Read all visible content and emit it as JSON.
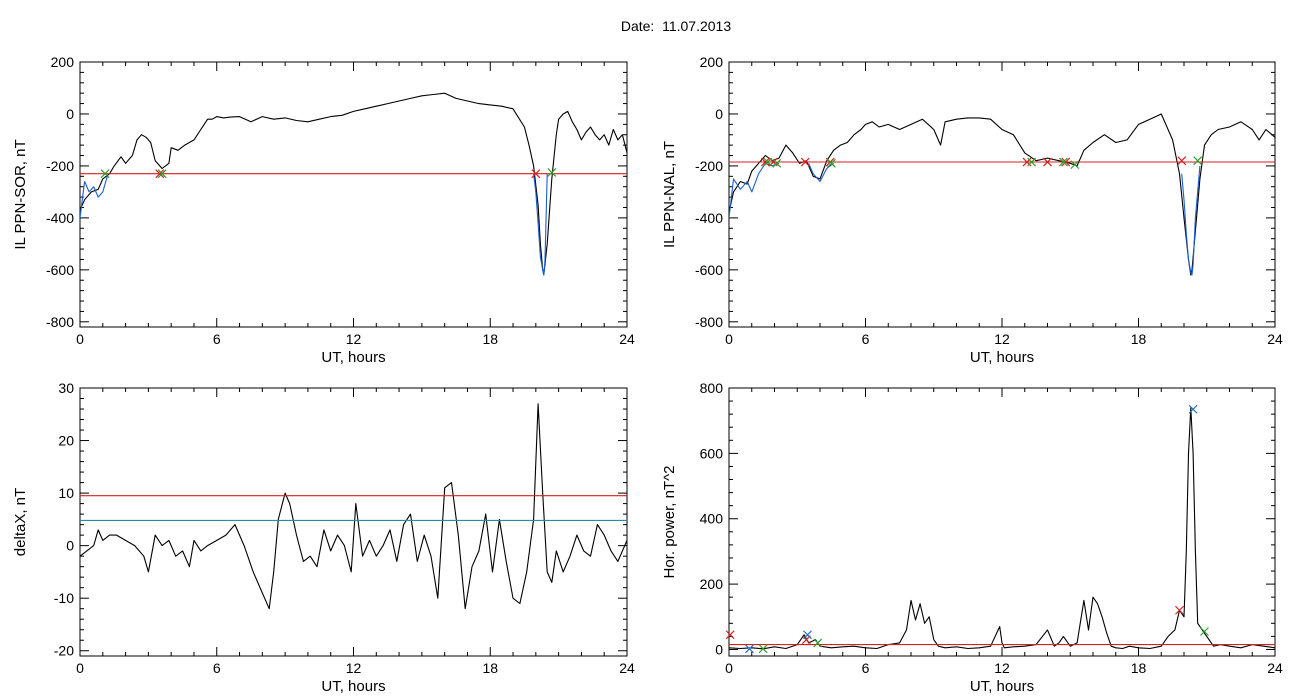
{
  "figure": {
    "title": "Date:  11.07.2013"
  },
  "chart_data": [
    {
      "type": "line",
      "id": "il-sor",
      "ylabel": "IL PPN-SOR, nT",
      "xlabel": "UT, hours",
      "xlim": [
        0,
        24
      ],
      "ylim": [
        -820,
        200
      ],
      "xticks": [
        0,
        6,
        12,
        18,
        24
      ],
      "yticks": [
        -800,
        -600,
        -400,
        -200,
        0,
        200
      ],
      "grid": false,
      "series": [
        {
          "color": "#000000",
          "x": [
            0.0,
            0.2,
            0.5,
            0.8,
            1.0,
            1.3,
            1.5,
            1.8,
            2.0,
            2.3,
            2.5,
            2.7,
            2.9,
            3.1,
            3.3,
            3.6,
            3.9,
            4.0,
            4.3,
            4.6,
            5.0,
            5.3,
            5.6,
            5.8,
            6.0,
            6.3,
            6.6,
            7.0,
            7.5,
            8.0,
            8.5,
            9.0,
            9.5,
            10.0,
            10.5,
            11.0,
            11.5,
            12.0,
            12.5,
            13.0,
            13.5,
            14.0,
            14.5,
            15.0,
            15.5,
            16.0,
            16.5,
            17.0,
            17.5,
            18.0,
            18.5,
            19.0,
            19.5,
            19.7,
            19.9,
            20.1,
            20.2,
            20.3,
            20.35,
            20.5,
            20.7,
            20.9,
            21.0,
            21.2,
            21.4,
            21.6,
            21.8,
            22.0,
            22.2,
            22.4,
            22.6,
            22.8,
            23.0,
            23.2,
            23.4,
            23.6,
            23.8,
            24.0
          ],
          "y": [
            -370,
            -330,
            -300,
            -290,
            -250,
            -230,
            -200,
            -165,
            -190,
            -160,
            -100,
            -80,
            -90,
            -110,
            -180,
            -210,
            -190,
            -130,
            -140,
            -120,
            -100,
            -60,
            -20,
            -20,
            -10,
            -15,
            -12,
            -10,
            -30,
            -10,
            -20,
            -15,
            -25,
            -30,
            -20,
            -10,
            -5,
            10,
            20,
            30,
            40,
            50,
            60,
            70,
            75,
            80,
            60,
            50,
            40,
            35,
            30,
            20,
            -50,
            -120,
            -200,
            -350,
            -500,
            -600,
            -620,
            -500,
            -250,
            -80,
            -20,
            0,
            10,
            -30,
            -60,
            -100,
            -70,
            -50,
            -80,
            -100,
            -80,
            -120,
            -60,
            -100,
            -80,
            -150
          ]
        },
        {
          "color": "#1a5fd0",
          "x": [
            0.0,
            0.2,
            0.4,
            0.6,
            0.8,
            1.0,
            1.2
          ],
          "y": [
            -400,
            -260,
            -300,
            -280,
            -320,
            -300,
            -240
          ]
        },
        {
          "color": "#1a5fd0",
          "x": [
            19.9,
            20.0,
            20.1,
            20.2,
            20.3,
            20.35,
            20.4,
            20.5
          ],
          "y": [
            -230,
            -300,
            -420,
            -550,
            -600,
            -620,
            -560,
            -230
          ]
        },
        {
          "color": "#d62020",
          "x": [
            0,
            24
          ],
          "y": [
            -230,
            -230
          ]
        }
      ],
      "markers": [
        {
          "color": "#d62020",
          "x": 3.5,
          "y": -230
        },
        {
          "color": "#d62020",
          "x": 20.0,
          "y": -230
        },
        {
          "color": "#2ca02c",
          "x": 1.1,
          "y": -230
        },
        {
          "color": "#2ca02c",
          "x": 3.6,
          "y": -230
        },
        {
          "color": "#2ca02c",
          "x": 20.7,
          "y": -225
        }
      ]
    },
    {
      "type": "line",
      "id": "il-nal",
      "ylabel": "IL PPN-NAL, nT",
      "xlabel": "UT, hours",
      "xlim": [
        0,
        24
      ],
      "ylim": [
        -820,
        200
      ],
      "xticks": [
        0,
        6,
        12,
        18,
        24
      ],
      "yticks": [
        -800,
        -600,
        -400,
        -200,
        0,
        200
      ],
      "grid": false,
      "series": [
        {
          "color": "#000000",
          "x": [
            0.0,
            0.2,
            0.5,
            0.8,
            1.0,
            1.3,
            1.6,
            1.9,
            2.2,
            2.5,
            2.8,
            3.1,
            3.4,
            3.7,
            4.0,
            4.3,
            4.6,
            4.9,
            5.2,
            5.5,
            5.8,
            6.0,
            6.3,
            6.6,
            7.0,
            7.5,
            8.0,
            8.5,
            9.0,
            9.3,
            9.5,
            10.0,
            10.5,
            11.0,
            11.5,
            12.0,
            12.5,
            13.0,
            13.5,
            14.0,
            14.5,
            15.0,
            15.3,
            15.6,
            16.0,
            16.5,
            17.0,
            17.5,
            18.0,
            18.5,
            19.0,
            19.5,
            19.8,
            20.0,
            20.2,
            20.3,
            20.35,
            20.5,
            20.7,
            20.9,
            21.2,
            21.5,
            22.0,
            22.5,
            23.0,
            23.3,
            23.6,
            24.0
          ],
          "y": [
            -380,
            -300,
            -260,
            -270,
            -220,
            -190,
            -160,
            -180,
            -170,
            -120,
            -150,
            -190,
            -180,
            -240,
            -250,
            -180,
            -140,
            -120,
            -110,
            -80,
            -60,
            -40,
            -30,
            -50,
            -40,
            -60,
            -40,
            -20,
            -60,
            -120,
            -30,
            -20,
            -15,
            -15,
            -20,
            -60,
            -80,
            -150,
            -180,
            -170,
            -180,
            -190,
            -200,
            -140,
            -110,
            -80,
            -110,
            -100,
            -40,
            -20,
            0,
            -100,
            -230,
            -400,
            -560,
            -620,
            -600,
            -450,
            -250,
            -120,
            -80,
            -60,
            -50,
            -30,
            -60,
            -100,
            -60,
            -90
          ]
        },
        {
          "color": "#1a5fd0",
          "x": [
            0.0,
            0.2,
            0.5,
            0.8,
            1.0,
            1.3,
            1.6,
            1.9,
            2.2
          ],
          "y": [
            -400,
            -250,
            -290,
            -260,
            -300,
            -230,
            -190,
            -200,
            -190
          ]
        },
        {
          "color": "#1a5fd0",
          "x": [
            3.5,
            3.7,
            4.0,
            4.3,
            4.6
          ],
          "y": [
            -190,
            -230,
            -260,
            -210,
            -190
          ]
        },
        {
          "color": "#1a5fd0",
          "x": [
            19.9,
            20.0,
            20.1,
            20.2,
            20.3,
            20.35,
            20.4,
            20.5,
            20.7
          ],
          "y": [
            -230,
            -330,
            -460,
            -560,
            -610,
            -620,
            -580,
            -400,
            -200
          ]
        },
        {
          "color": "#d62020",
          "x": [
            0,
            24
          ],
          "y": [
            -185,
            -185
          ]
        }
      ],
      "markers": [
        {
          "color": "#d62020",
          "x": 1.6,
          "y": -185
        },
        {
          "color": "#d62020",
          "x": 1.95,
          "y": -185
        },
        {
          "color": "#d62020",
          "x": 3.35,
          "y": -185
        },
        {
          "color": "#d62020",
          "x": 4.45,
          "y": -185
        },
        {
          "color": "#d62020",
          "x": 13.1,
          "y": -185
        },
        {
          "color": "#d62020",
          "x": 14.0,
          "y": -185
        },
        {
          "color": "#d62020",
          "x": 14.8,
          "y": -185
        },
        {
          "color": "#d62020",
          "x": 19.9,
          "y": -180
        },
        {
          "color": "#2ca02c",
          "x": 1.7,
          "y": -185
        },
        {
          "color": "#2ca02c",
          "x": 2.1,
          "y": -190
        },
        {
          "color": "#2ca02c",
          "x": 4.5,
          "y": -190
        },
        {
          "color": "#2ca02c",
          "x": 13.3,
          "y": -185
        },
        {
          "color": "#2ca02c",
          "x": 14.7,
          "y": -185
        },
        {
          "color": "#2ca02c",
          "x": 15.2,
          "y": -195
        },
        {
          "color": "#2ca02c",
          "x": 20.6,
          "y": -180
        }
      ]
    },
    {
      "type": "line",
      "id": "deltax",
      "ylabel": "deltaX, nT",
      "xlabel": "UT, hours",
      "xlim": [
        0,
        24
      ],
      "ylim": [
        -21,
        30
      ],
      "xticks": [
        0,
        6,
        12,
        18,
        24
      ],
      "yticks": [
        -20,
        -10,
        0,
        10,
        20,
        30
      ],
      "grid": false,
      "series": [
        {
          "color": "#000000",
          "x": [
            0.0,
            0.3,
            0.6,
            0.8,
            1.0,
            1.3,
            1.6,
            2.0,
            2.4,
            2.8,
            3.0,
            3.3,
            3.6,
            3.9,
            4.2,
            4.5,
            4.8,
            5.0,
            5.3,
            5.6,
            6.0,
            6.4,
            6.8,
            7.2,
            7.6,
            8.0,
            8.3,
            8.5,
            8.7,
            9.0,
            9.2,
            9.5,
            9.8,
            10.1,
            10.4,
            10.7,
            11.0,
            11.3,
            11.6,
            11.9,
            12.1,
            12.4,
            12.7,
            13.0,
            13.3,
            13.6,
            13.9,
            14.2,
            14.5,
            14.8,
            15.1,
            15.4,
            15.7,
            16.0,
            16.3,
            16.6,
            16.9,
            17.2,
            17.5,
            17.8,
            18.1,
            18.4,
            18.7,
            19.0,
            19.3,
            19.6,
            19.9,
            20.1,
            20.3,
            20.5,
            20.7,
            20.9,
            21.2,
            21.5,
            21.8,
            22.1,
            22.4,
            22.7,
            23.0,
            23.3,
            23.6,
            24.0
          ],
          "y": [
            -2,
            -1,
            0,
            3,
            1,
            2,
            2,
            1,
            0,
            -2,
            -5,
            2,
            0,
            1,
            -2,
            -1,
            -4,
            1,
            -1,
            0,
            1,
            2,
            4,
            0,
            -5,
            -9,
            -12,
            -5,
            5,
            10,
            8,
            2,
            -3,
            -2,
            -4,
            3,
            -1,
            2,
            0,
            -5,
            8,
            -2,
            1,
            -2,
            0,
            3,
            -3,
            4,
            6,
            -3,
            2,
            -2,
            -10,
            11,
            12,
            2,
            -12,
            -4,
            -1,
            6,
            -5,
            5,
            -3,
            -10,
            -11,
            -5,
            5,
            27,
            10,
            -5,
            -7,
            -1,
            -5,
            -2,
            2,
            -1,
            -2,
            4,
            2,
            -1,
            -3,
            1
          ]
        },
        {
          "color": "#d62020",
          "x": [
            0,
            24
          ],
          "y": [
            9.5,
            9.5
          ]
        },
        {
          "color": "#1f8fa8",
          "x": [
            0,
            24
          ],
          "y": [
            4.8,
            4.8
          ]
        }
      ],
      "markers": []
    },
    {
      "type": "line",
      "id": "hor-power",
      "ylabel": "Hor. power, nT^2",
      "xlabel": "UT, hours",
      "xlim": [
        0,
        24
      ],
      "ylim": [
        -20,
        800
      ],
      "xticks": [
        0,
        6,
        12,
        18,
        24
      ],
      "yticks": [
        0,
        200,
        400,
        600,
        800
      ],
      "grid": false,
      "series": [
        {
          "color": "#000000",
          "x": [
            0.0,
            0.5,
            1.0,
            1.5,
            2.0,
            2.5,
            3.0,
            3.3,
            3.5,
            3.8,
            4.0,
            4.5,
            5.0,
            5.5,
            6.0,
            6.5,
            7.0,
            7.5,
            7.8,
            8.0,
            8.2,
            8.4,
            8.6,
            8.8,
            9.0,
            9.2,
            9.5,
            10.0,
            10.5,
            11.0,
            11.5,
            11.9,
            12.0,
            12.1,
            12.5,
            13.0,
            13.5,
            14.0,
            14.3,
            14.5,
            14.7,
            15.0,
            15.3,
            15.6,
            15.8,
            16.0,
            16.2,
            16.4,
            16.6,
            16.8,
            17.0,
            17.3,
            17.6,
            18.0,
            18.5,
            19.0,
            19.3,
            19.6,
            19.8,
            20.0,
            20.1,
            20.2,
            20.3,
            20.4,
            20.5,
            20.6,
            20.8,
            21.0,
            21.3,
            21.6,
            22.0,
            22.5,
            23.0,
            23.5,
            24.0
          ],
          "y": [
            5,
            3,
            5,
            2,
            8,
            3,
            15,
            45,
            20,
            30,
            10,
            5,
            8,
            10,
            5,
            3,
            15,
            20,
            60,
            150,
            90,
            140,
            80,
            100,
            30,
            10,
            5,
            8,
            3,
            5,
            10,
            70,
            20,
            5,
            8,
            10,
            15,
            60,
            10,
            20,
            40,
            10,
            20,
            150,
            60,
            160,
            140,
            100,
            50,
            10,
            5,
            3,
            10,
            5,
            3,
            10,
            40,
            60,
            120,
            100,
            300,
            600,
            740,
            600,
            300,
            80,
            60,
            40,
            10,
            15,
            10,
            5,
            15,
            10,
            5
          ]
        },
        {
          "color": "#d62020",
          "x": [
            0,
            24
          ],
          "y": [
            15,
            15
          ]
        }
      ],
      "markers": [
        {
          "color": "#d62020",
          "x": 0.05,
          "y": 45
        },
        {
          "color": "#d62020",
          "x": 3.4,
          "y": 30
        },
        {
          "color": "#d62020",
          "x": 19.8,
          "y": 120
        },
        {
          "color": "#1f6fd0",
          "x": 0.9,
          "y": 2
        },
        {
          "color": "#1f6fd0",
          "x": 3.45,
          "y": 45
        },
        {
          "color": "#1f6fd0",
          "x": 20.4,
          "y": 735
        },
        {
          "color": "#2ca02c",
          "x": 1.5,
          "y": 2
        },
        {
          "color": "#2ca02c",
          "x": 3.9,
          "y": 20
        },
        {
          "color": "#2ca02c",
          "x": 20.9,
          "y": 55
        }
      ]
    }
  ]
}
